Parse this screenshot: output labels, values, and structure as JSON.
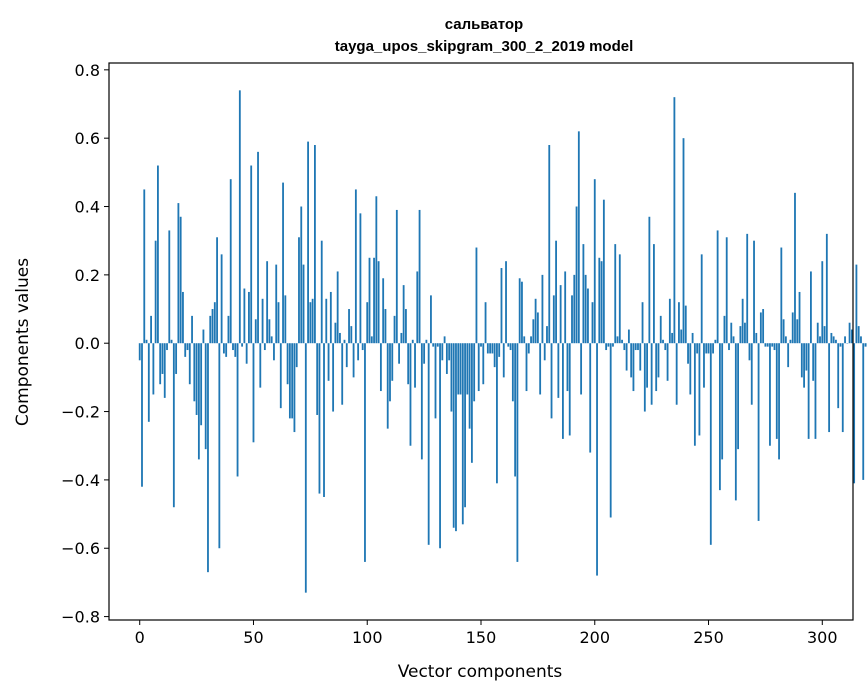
{
  "chart_data": {
    "type": "bar",
    "title": "сальватор",
    "subtitle": "tayga_upos_skipgram_300_2_2019 model",
    "xlabel": "Vector components",
    "ylabel": "Components values",
    "xlim": [
      -13.5,
      313.5
    ],
    "ylim": [
      -0.81,
      0.82
    ],
    "xticks": [
      0,
      50,
      100,
      150,
      200,
      250,
      300
    ],
    "yticks": [
      -0.8,
      -0.6,
      -0.4,
      -0.2,
      0.0,
      0.2,
      0.4,
      0.6,
      0.8
    ],
    "grid": false,
    "bar_color": "#1f77b4",
    "values": [
      -0.05,
      -0.42,
      0.45,
      0.01,
      -0.23,
      0.08,
      -0.15,
      0.3,
      0.52,
      -0.12,
      -0.09,
      -0.16,
      -0.02,
      0.33,
      0.01,
      -0.48,
      -0.09,
      0.41,
      0.37,
      0.15,
      -0.04,
      -0.02,
      -0.12,
      0.08,
      -0.17,
      -0.21,
      -0.34,
      -0.24,
      0.04,
      -0.31,
      -0.67,
      0.08,
      0.1,
      0.12,
      0.31,
      -0.6,
      0.26,
      -0.03,
      -0.04,
      0.08,
      0.48,
      -0.02,
      -0.04,
      -0.39,
      0.74,
      -0.01,
      0.16,
      -0.06,
      0.15,
      0.52,
      -0.29,
      0.07,
      0.56,
      -0.13,
      0.13,
      -0.02,
      0.24,
      0.07,
      0.02,
      -0.05,
      0.23,
      0.12,
      -0.19,
      0.47,
      0.14,
      -0.12,
      -0.22,
      -0.22,
      -0.26,
      -0.07,
      0.31,
      0.4,
      0.23,
      -0.73,
      0.59,
      0.12,
      0.13,
      0.58,
      -0.21,
      -0.44,
      0.3,
      -0.45,
      0.13,
      -0.11,
      0.15,
      -0.2,
      0.06,
      0.21,
      0.03,
      -0.18,
      0.01,
      -0.07,
      0.1,
      0.05,
      -0.1,
      0.45,
      -0.05,
      0.38,
      -0.02,
      -0.64,
      0.12,
      0.25,
      0.02,
      0.25,
      0.43,
      0.24,
      -0.14,
      0.19,
      0.1,
      -0.25,
      -0.17,
      -0.11,
      0.08,
      0.39,
      -0.06,
      0.03,
      0.17,
      0.1,
      -0.12,
      -0.3,
      0.01,
      -0.13,
      0.21,
      0.39,
      -0.34,
      -0.06,
      0.01,
      -0.59,
      0.14,
      -0.01,
      -0.22,
      -0.01,
      -0.6,
      -0.05,
      0.02,
      -0.09,
      -0.05,
      -0.2,
      -0.54,
      -0.55,
      -0.15,
      -0.15,
      -0.53,
      -0.48,
      -0.15,
      -0.25,
      -0.35,
      -0.17,
      0.28,
      -0.14,
      -0.01,
      -0.12,
      0.12,
      -0.03,
      -0.03,
      -0.03,
      -0.07,
      -0.41,
      -0.04,
      0.22,
      -0.1,
      0.24,
      -0.01,
      -0.02,
      -0.17,
      -0.39,
      -0.64,
      0.19,
      0.18,
      0.02,
      -0.14,
      -0.03,
      0.02,
      0.07,
      0.13,
      0.09,
      -0.15,
      0.2,
      -0.05,
      0.05,
      0.58,
      -0.22,
      0.14,
      0.3,
      -0.16,
      0.17,
      -0.28,
      0.21,
      -0.14,
      -0.27,
      0.14,
      0.2,
      0.4,
      0.62,
      -0.15,
      0.29,
      0.2,
      0.16,
      -0.32,
      0.12,
      0.48,
      -0.68,
      0.25,
      0.24,
      0.42,
      -0.02,
      -0.01,
      -0.51,
      -0.01,
      0.29,
      0.02,
      0.26,
      0.01,
      -0.02,
      -0.08,
      0.04,
      -0.1,
      -0.14,
      -0.02,
      -0.02,
      -0.08,
      0.12,
      -0.2,
      -0.13,
      0.37,
      -0.18,
      0.29,
      -0.14,
      -0.1,
      0.08,
      0.01,
      -0.02,
      -0.11,
      0.13,
      0.03,
      0.72,
      -0.18,
      0.12,
      0.04,
      0.6,
      0.11,
      -0.06,
      -0.15,
      0.03,
      -0.3,
      -0.03,
      -0.27,
      0.26,
      -0.13,
      -0.03,
      -0.03,
      -0.59,
      -0.03,
      0.01,
      0.33,
      -0.43,
      -0.34,
      0.08,
      0.31,
      -0.02,
      0.06,
      0.02,
      -0.46,
      -0.31,
      0.05,
      0.13,
      0.06,
      0.32,
      -0.05,
      -0.18,
      0.3,
      0.03,
      -0.52,
      0.09,
      0.1,
      -0.01,
      -0.01,
      -0.3,
      -0.01,
      -0.02,
      -0.28,
      -0.34,
      0.28,
      0.07,
      0.02,
      -0.07,
      0.01,
      0.09,
      0.44,
      0.07,
      0.15,
      -0.1,
      -0.13,
      -0.08,
      -0.28,
      0.21,
      -0.11,
      -0.28,
      0.06,
      0.02,
      0.24,
      0.05,
      0.32,
      -0.26,
      0.03,
      0.02,
      0.01,
      -0.19,
      -0.01,
      -0.26,
      0.02,
      0.0,
      0.06,
      0.04,
      -0.41,
      0.23,
      0.05,
      0.02,
      -0.4,
      -0.01,
      -0.01
    ]
  }
}
